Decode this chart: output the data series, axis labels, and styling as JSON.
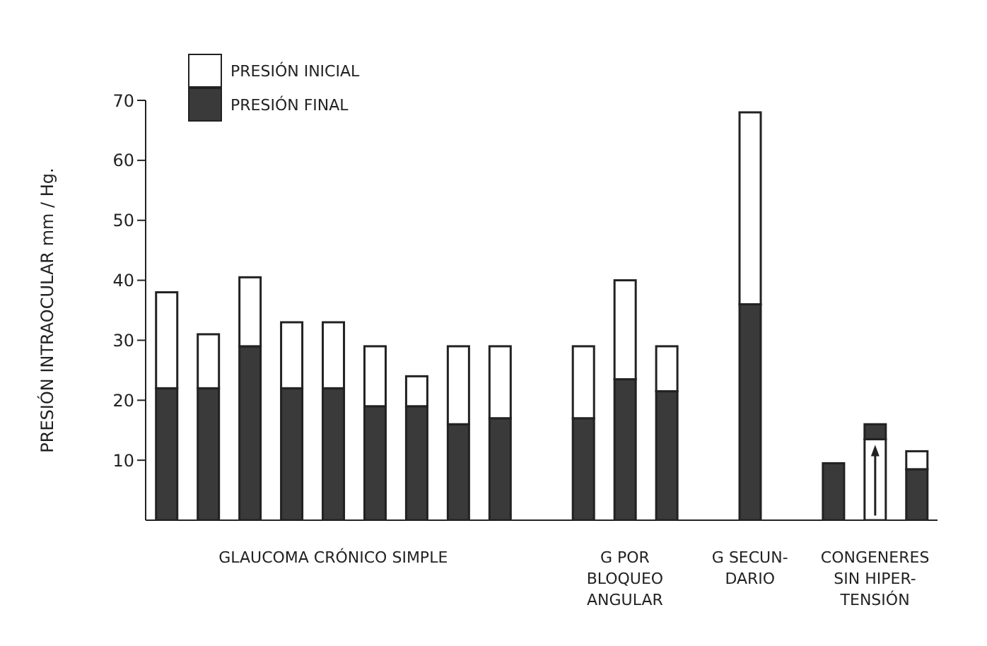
{
  "chart_data": {
    "type": "bar",
    "stacked": true,
    "ylabel": "PRESIÓN INTRAOCULAR  mm / Hg.",
    "categories": [
      null,
      null,
      null,
      null,
      "GLAUCOMA CRÓNICO SIMPLE",
      null,
      null,
      null,
      null,
      null,
      null,
      "G POR\nBLOQUEO\nANGULAR",
      null,
      null,
      "G SECUN-\nDARIO",
      null,
      null,
      "CONGENERES\nSIN HIPER-\nTENSIÓN",
      null
    ],
    "series": [
      {
        "name": "PRESIÓN FINAL",
        "color": "#3a3a3a",
        "values": [
          22,
          22,
          29,
          22,
          22,
          19,
          19,
          16,
          17,
          null,
          17,
          23.5,
          21.5,
          null,
          36,
          null,
          9.5,
          null,
          8.5
        ]
      },
      {
        "name": "PRESIÓN INICIAL",
        "color": "#ffffff",
        "values": [
          16,
          9,
          11.5,
          11,
          11,
          10,
          5,
          13,
          12,
          null,
          12,
          16.5,
          7.5,
          null,
          32,
          null,
          null,
          13.5,
          3
        ]
      },
      {
        "color": "#3a3a3a",
        "values": [
          null,
          null,
          null,
          null,
          null,
          null,
          null,
          null,
          null,
          null,
          null,
          null,
          null,
          null,
          null,
          null,
          null,
          2.5,
          null
        ]
      }
    ],
    "ylim": [
      0,
      70
    ],
    "yticks": [
      10,
      20,
      30,
      40,
      50,
      60,
      70
    ],
    "legend": "top left"
  }
}
